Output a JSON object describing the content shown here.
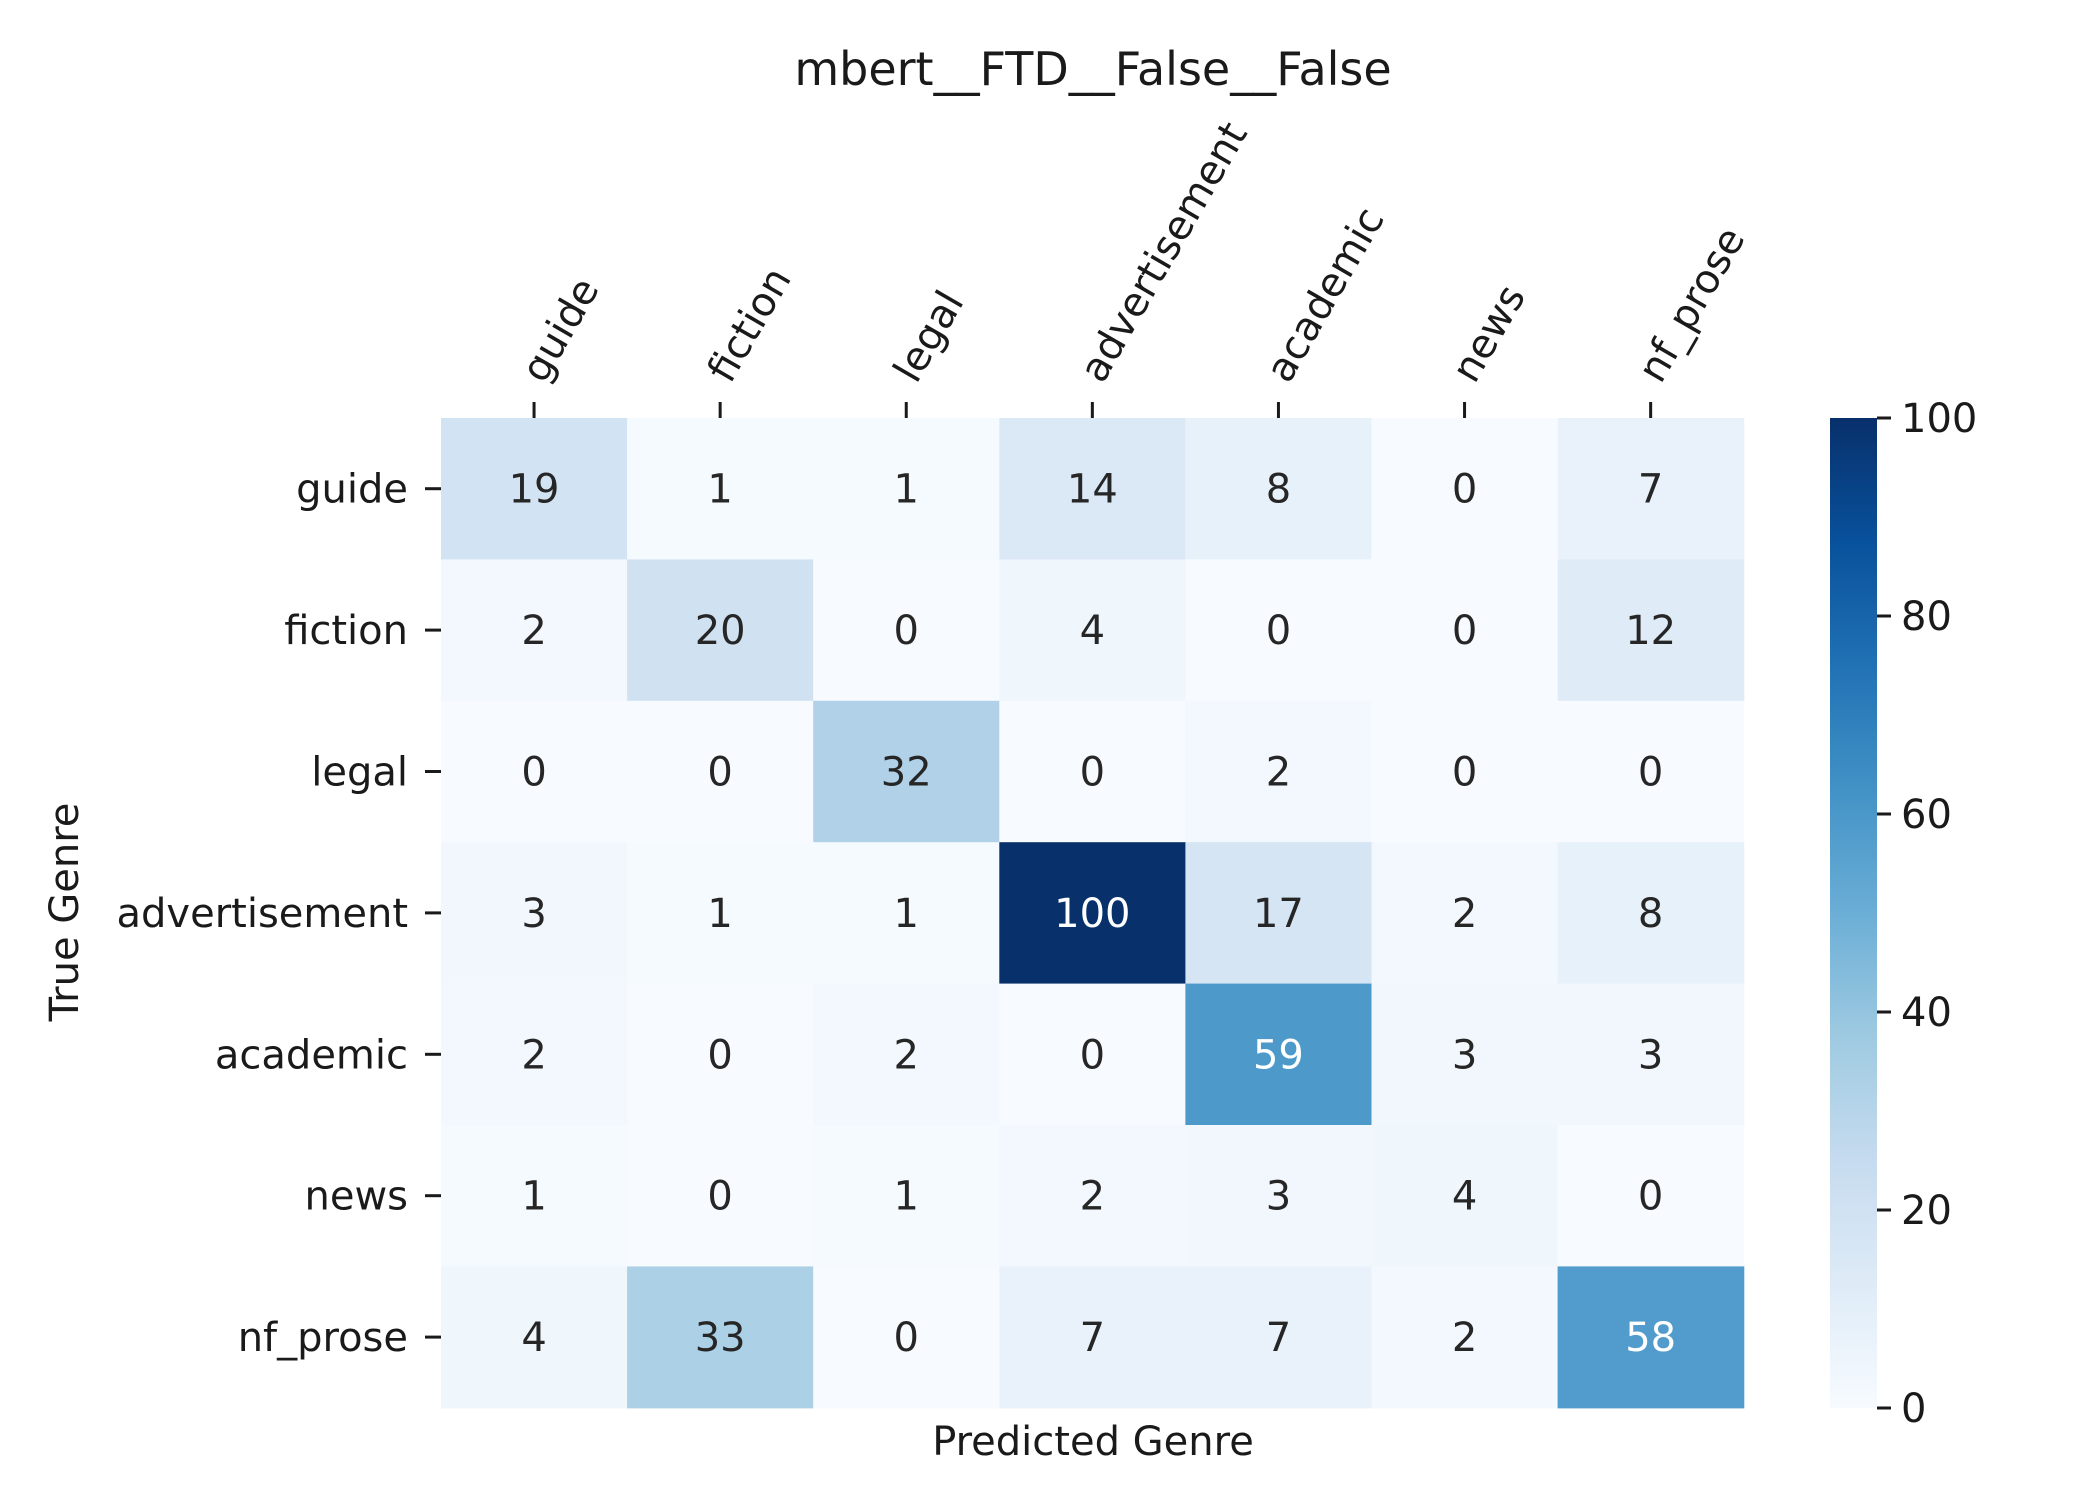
{
  "chart_data": {
    "type": "heatmap",
    "title": "mbert__FTD__False__False",
    "xlabel": "Predicted Genre",
    "ylabel": "True Genre",
    "x_categories": [
      "guide",
      "fiction",
      "legal",
      "advertisement",
      "academic",
      "news",
      "nf_prose"
    ],
    "y_categories": [
      "guide",
      "fiction",
      "legal",
      "advertisement",
      "academic",
      "news",
      "nf_prose"
    ],
    "values": [
      [
        19,
        1,
        1,
        14,
        8,
        0,
        7
      ],
      [
        2,
        20,
        0,
        4,
        0,
        0,
        12
      ],
      [
        0,
        0,
        32,
        0,
        2,
        0,
        0
      ],
      [
        3,
        1,
        1,
        100,
        17,
        2,
        8
      ],
      [
        2,
        0,
        2,
        0,
        59,
        3,
        3
      ],
      [
        1,
        0,
        1,
        2,
        3,
        4,
        0
      ],
      [
        4,
        33,
        0,
        7,
        7,
        2,
        58
      ]
    ],
    "colorbar": {
      "range": [
        0,
        100
      ],
      "ticks": [
        "0",
        "20",
        "40",
        "60",
        "80",
        "100"
      ],
      "colormap": "Blues"
    },
    "x_tick_position": "top",
    "x_tick_rotation": "45 degrees",
    "grid": false,
    "legend": "colorbar at right"
  },
  "colors": {
    "colormap_stops": [
      "#f7fbff",
      "#deebf7",
      "#c6dbef",
      "#9ecae1",
      "#6baed6",
      "#4292c6",
      "#2171b5",
      "#08519c",
      "#08306b"
    ],
    "text_dark": "#262626",
    "text_light": "#ffffff"
  }
}
